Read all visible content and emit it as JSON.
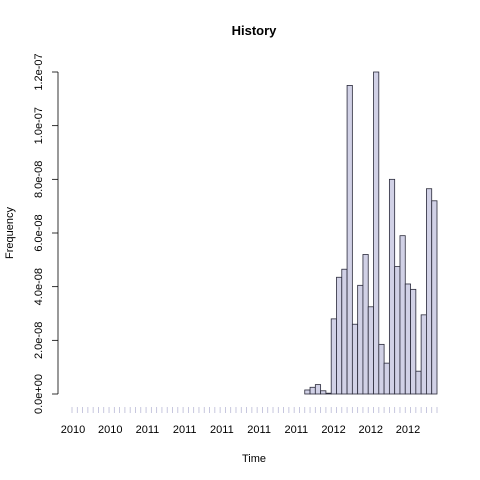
{
  "chart_data": {
    "type": "bar",
    "title": "History",
    "xlabel": "Time",
    "ylabel": "Frequency",
    "ylim": [
      0,
      1.2e-07
    ],
    "yticks": [
      {
        "value": 0,
        "label": "0.0e+00"
      },
      {
        "value": 2e-08,
        "label": "2.0e-08"
      },
      {
        "value": 4e-08,
        "label": "4.0e-08"
      },
      {
        "value": 6e-08,
        "label": "6.0e-08"
      },
      {
        "value": 8e-08,
        "label": "8.0e-08"
      },
      {
        "value": 1e-07,
        "label": "1.0e-07"
      },
      {
        "value": 1.2e-07,
        "label": "1.2e-07"
      }
    ],
    "xticks": [
      "2010",
      "2010",
      "2011",
      "2011",
      "2011",
      "2011",
      "2011",
      "2012",
      "2012",
      "2012"
    ],
    "values": [
      0,
      0,
      0,
      0,
      0,
      0,
      0,
      0,
      0,
      0,
      0,
      0,
      0,
      0,
      0,
      0,
      0,
      0,
      0,
      0,
      0,
      0,
      0,
      0,
      0,
      0,
      0,
      0,
      0,
      0,
      0,
      0,
      0,
      0,
      0,
      0,
      0,
      0,
      0,
      0,
      0,
      0,
      0,
      0,
      1.5e-09,
      2.5e-09,
      3.5e-09,
      1.2e-09,
      3e-10,
      2.8e-08,
      4.35e-08,
      4.65e-08,
      1.15e-07,
      2.6e-08,
      4.05e-08,
      5.2e-08,
      3.25e-08,
      1.2e-07,
      1.85e-08,
      1.15e-08,
      8e-08,
      4.75e-08,
      5.9e-08,
      4.1e-08,
      3.9e-08,
      8.5e-09,
      2.95e-08,
      7.65e-08,
      7.2e-08
    ],
    "grid": false,
    "bar_color": "#d1d1e6",
    "bar_outline": "#2a2a3a",
    "minor_tick_color": "#b9b9d6"
  }
}
